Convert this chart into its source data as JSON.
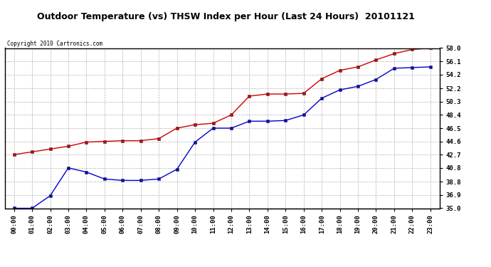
{
  "title": "Outdoor Temperature (vs) THSW Index per Hour (Last 24 Hours)  20101121",
  "copyright": "Copyright 2010 Cartronics.com",
  "x_labels": [
    "00:00",
    "01:00",
    "02:00",
    "03:00",
    "04:00",
    "05:00",
    "06:00",
    "07:00",
    "08:00",
    "09:00",
    "10:00",
    "11:00",
    "12:00",
    "13:00",
    "14:00",
    "15:00",
    "16:00",
    "17:00",
    "18:00",
    "19:00",
    "20:00",
    "21:00",
    "22:00",
    "23:00"
  ],
  "temp_red": [
    42.7,
    43.1,
    43.5,
    43.9,
    44.5,
    44.6,
    44.7,
    44.7,
    45.0,
    46.5,
    47.0,
    47.2,
    48.4,
    51.1,
    51.4,
    51.4,
    51.5,
    53.6,
    54.8,
    55.3,
    56.3,
    57.2,
    57.8,
    58.0
  ],
  "thsw_blue": [
    35.0,
    35.0,
    36.8,
    40.8,
    40.2,
    39.2,
    39.0,
    39.0,
    39.2,
    40.6,
    44.5,
    46.5,
    46.5,
    47.5,
    47.5,
    47.6,
    48.4,
    50.8,
    52.0,
    52.5,
    53.5,
    55.1,
    55.2,
    55.3
  ],
  "ylim": [
    35.0,
    58.0
  ],
  "ytick_values": [
    35.0,
    36.9,
    38.8,
    40.8,
    42.7,
    44.6,
    46.5,
    48.4,
    50.3,
    52.2,
    54.2,
    56.1,
    58.0
  ],
  "red_color": "#cc0000",
  "blue_color": "#0000cc",
  "grid_color": "#aaaaaa",
  "bg_color": "#ffffff",
  "plot_bg_color": "#ffffff"
}
